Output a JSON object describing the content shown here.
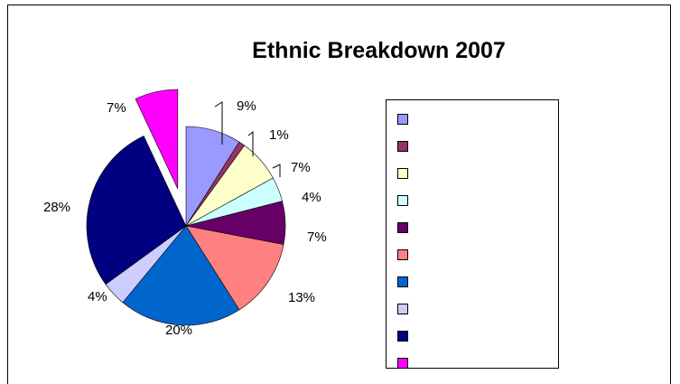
{
  "chart_data": {
    "type": "pie",
    "title": "Ethnic Breakdown 2007",
    "legend_position": "right",
    "slices": [
      {
        "label": "",
        "value": 9,
        "display": "9%",
        "color": "#9999ff",
        "exploded": false
      },
      {
        "label": "",
        "value": 1,
        "display": "1%",
        "color": "#993366",
        "exploded": false
      },
      {
        "label": "",
        "value": 7,
        "display": "7%",
        "color": "#ffffcc",
        "exploded": false
      },
      {
        "label": "",
        "value": 4,
        "display": "4%",
        "color": "#ccffff",
        "exploded": false
      },
      {
        "label": "",
        "value": 7,
        "display": "7%",
        "color": "#660066",
        "exploded": false
      },
      {
        "label": "",
        "value": 13,
        "display": "13%",
        "color": "#ff8080",
        "exploded": false
      },
      {
        "label": "",
        "value": 20,
        "display": "20%",
        "color": "#0066cc",
        "exploded": false
      },
      {
        "label": "",
        "value": 4,
        "display": "4%",
        "color": "#ccccff",
        "exploded": false
      },
      {
        "label": "",
        "value": 28,
        "display": "28%",
        "color": "#000080",
        "exploded": false
      },
      {
        "label": "",
        "value": 7,
        "display": "7%",
        "color": "#ff00ff",
        "exploded": true
      }
    ]
  }
}
